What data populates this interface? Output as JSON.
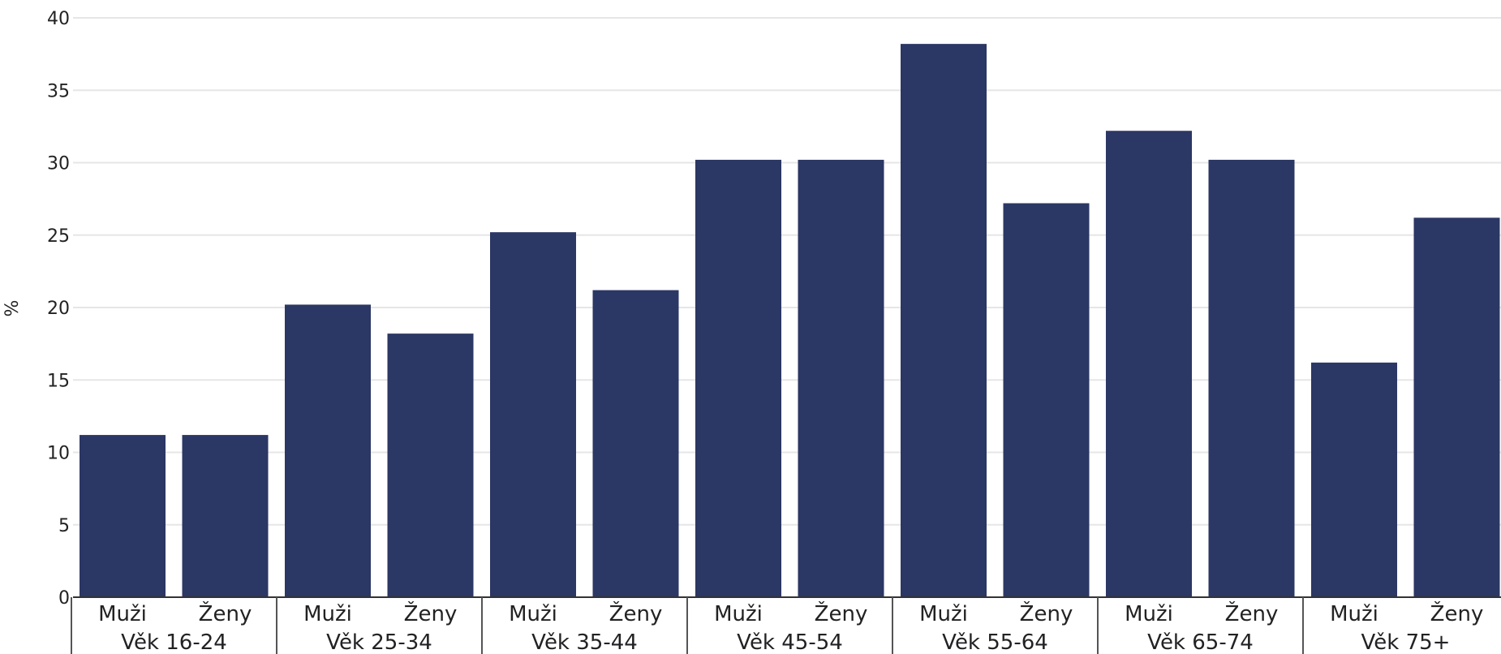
{
  "chart_data": {
    "type": "bar",
    "ylabel": "%",
    "ylim": [
      0,
      40
    ],
    "yticks": [
      0,
      5,
      10,
      15,
      20,
      25,
      30,
      35,
      40
    ],
    "grid": true,
    "bar_color": "#2b3764",
    "groups": [
      {
        "label": "Věk 16-24",
        "categories": [
          "Muži",
          "Ženy"
        ],
        "values": [
          11.2,
          11.2
        ]
      },
      {
        "label": "Věk 25-34",
        "categories": [
          "Muži",
          "Ženy"
        ],
        "values": [
          20.2,
          18.2
        ]
      },
      {
        "label": "Věk 35-44",
        "categories": [
          "Muži",
          "Ženy"
        ],
        "values": [
          25.2,
          21.2
        ]
      },
      {
        "label": "Věk 45-54",
        "categories": [
          "Muži",
          "Ženy"
        ],
        "values": [
          30.2,
          30.2
        ]
      },
      {
        "label": "Věk 55-64",
        "categories": [
          "Muži",
          "Ženy"
        ],
        "values": [
          38.2,
          27.2
        ]
      },
      {
        "label": "Věk 65-74",
        "categories": [
          "Muži",
          "Ženy"
        ],
        "values": [
          32.2,
          30.2
        ]
      },
      {
        "label": "Věk 75+",
        "categories": [
          "Muži",
          "Ženy"
        ],
        "values": [
          16.2,
          26.2
        ]
      }
    ]
  }
}
